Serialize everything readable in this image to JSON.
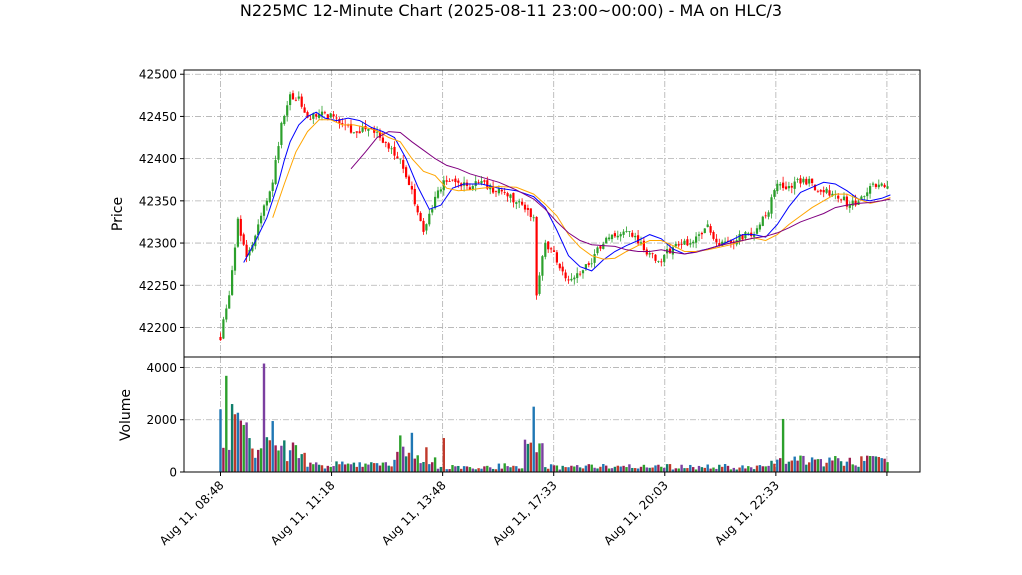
{
  "chart_data": {
    "type": "candlestick",
    "title": "N225MC 12-Minute Chart (2025-08-11 23:00~00:00) - MA on HLC/3",
    "price_panel": {
      "ylabel": "Price",
      "ylim": [
        42165,
        42505
      ],
      "yticks": [
        42200,
        42250,
        42300,
        42350,
        42400,
        42450,
        42500
      ],
      "grid": true
    },
    "volume_panel": {
      "ylabel": "Volume",
      "ylim": [
        0,
        4400
      ],
      "yticks": [
        0,
        2000,
        4000
      ],
      "grid": true
    },
    "xtick_labels": [
      "Aug 11, 08:48",
      "Aug 11, 11:18",
      "Aug 11, 13:48",
      "Aug 11, 17:33",
      "Aug 11, 20:03",
      "Aug 11, 22:33"
    ],
    "up_color": "#2ca02c",
    "down_color": "#ff0000",
    "ma_series": [
      {
        "color": "#0000ff",
        "values": [
          [
            8,
            42277
          ],
          [
            12,
            42302
          ],
          [
            16,
            42330
          ],
          [
            20,
            42372
          ],
          [
            22,
            42398
          ],
          [
            24,
            42420
          ],
          [
            27,
            42440
          ],
          [
            30,
            42450
          ],
          [
            33,
            42455
          ],
          [
            36,
            42448
          ],
          [
            40,
            42445
          ],
          [
            44,
            42448
          ],
          [
            48,
            42445
          ],
          [
            52,
            42437
          ],
          [
            56,
            42432
          ],
          [
            60,
            42425
          ],
          [
            64,
            42400
          ],
          [
            68,
            42367
          ],
          [
            72,
            42340
          ],
          [
            76,
            42345
          ],
          [
            80,
            42365
          ],
          [
            84,
            42370
          ],
          [
            90,
            42370
          ],
          [
            96,
            42365
          ],
          [
            102,
            42362
          ],
          [
            108,
            42355
          ],
          [
            112,
            42342
          ],
          [
            116,
            42315
          ],
          [
            120,
            42285
          ],
          [
            124,
            42272
          ],
          [
            128,
            42267
          ],
          [
            132,
            42280
          ],
          [
            136,
            42290
          ],
          [
            140,
            42297
          ],
          [
            144,
            42303
          ],
          [
            148,
            42310
          ],
          [
            152,
            42305
          ],
          [
            156,
            42293
          ],
          [
            160,
            42287
          ],
          [
            164,
            42290
          ],
          [
            168,
            42293
          ],
          [
            172,
            42297
          ],
          [
            176,
            42303
          ],
          [
            180,
            42310
          ],
          [
            184,
            42310
          ],
          [
            188,
            42307
          ],
          [
            192,
            42322
          ],
          [
            196,
            42343
          ],
          [
            200,
            42360
          ],
          [
            204,
            42366
          ],
          [
            208,
            42372
          ],
          [
            212,
            42370
          ],
          [
            216,
            42362
          ],
          [
            220,
            42352
          ],
          [
            224,
            42350
          ],
          [
            228,
            42353
          ],
          [
            231,
            42357
          ]
        ]
      },
      {
        "color": "#ffa500",
        "values": [
          [
            18,
            42330
          ],
          [
            22,
            42370
          ],
          [
            26,
            42408
          ],
          [
            30,
            42432
          ],
          [
            34,
            42446
          ],
          [
            38,
            42446
          ],
          [
            42,
            42440
          ],
          [
            46,
            42440
          ],
          [
            50,
            42437
          ],
          [
            54,
            42433
          ],
          [
            58,
            42425
          ],
          [
            62,
            42420
          ],
          [
            66,
            42400
          ],
          [
            70,
            42385
          ],
          [
            74,
            42380
          ],
          [
            78,
            42365
          ],
          [
            82,
            42362
          ],
          [
            86,
            42363
          ],
          [
            90,
            42365
          ],
          [
            96,
            42367
          ],
          [
            102,
            42366
          ],
          [
            108,
            42358
          ],
          [
            112,
            42346
          ],
          [
            116,
            42332
          ],
          [
            120,
            42310
          ],
          [
            124,
            42295
          ],
          [
            128,
            42285
          ],
          [
            132,
            42281
          ],
          [
            136,
            42282
          ],
          [
            140,
            42290
          ],
          [
            144,
            42297
          ],
          [
            148,
            42303
          ],
          [
            152,
            42303
          ],
          [
            156,
            42297
          ],
          [
            160,
            42290
          ],
          [
            164,
            42290
          ],
          [
            168,
            42292
          ],
          [
            172,
            42295
          ],
          [
            176,
            42298
          ],
          [
            180,
            42303
          ],
          [
            184,
            42306
          ],
          [
            188,
            42303
          ],
          [
            192,
            42310
          ],
          [
            196,
            42322
          ],
          [
            200,
            42332
          ],
          [
            204,
            42342
          ],
          [
            208,
            42350
          ],
          [
            212,
            42358
          ],
          [
            216,
            42358
          ],
          [
            220,
            42352
          ],
          [
            224,
            42347
          ],
          [
            228,
            42350
          ],
          [
            231,
            42354
          ]
        ]
      },
      {
        "color": "#800080",
        "values": [
          [
            45,
            42388
          ],
          [
            50,
            42408
          ],
          [
            54,
            42425
          ],
          [
            58,
            42432
          ],
          [
            62,
            42431
          ],
          [
            66,
            42420
          ],
          [
            70,
            42410
          ],
          [
            74,
            42400
          ],
          [
            78,
            42392
          ],
          [
            82,
            42388
          ],
          [
            86,
            42382
          ],
          [
            90,
            42378
          ],
          [
            96,
            42372
          ],
          [
            102,
            42363
          ],
          [
            108,
            42352
          ],
          [
            112,
            42340
          ],
          [
            116,
            42325
          ],
          [
            120,
            42312
          ],
          [
            124,
            42303
          ],
          [
            128,
            42298
          ],
          [
            132,
            42297
          ],
          [
            136,
            42296
          ],
          [
            140,
            42292
          ],
          [
            144,
            42290
          ],
          [
            148,
            42290
          ],
          [
            152,
            42292
          ],
          [
            156,
            42289
          ],
          [
            160,
            42287
          ],
          [
            164,
            42289
          ],
          [
            168,
            42293
          ],
          [
            172,
            42297
          ],
          [
            176,
            42300
          ],
          [
            180,
            42303
          ],
          [
            184,
            42306
          ],
          [
            188,
            42308
          ],
          [
            192,
            42312
          ],
          [
            196,
            42318
          ],
          [
            200,
            42325
          ],
          [
            204,
            42330
          ],
          [
            208,
            42335
          ],
          [
            212,
            42342
          ],
          [
            216,
            42345
          ],
          [
            220,
            42347
          ],
          [
            224,
            42348
          ],
          [
            228,
            42350
          ],
          [
            231,
            42352
          ]
        ]
      }
    ]
  }
}
